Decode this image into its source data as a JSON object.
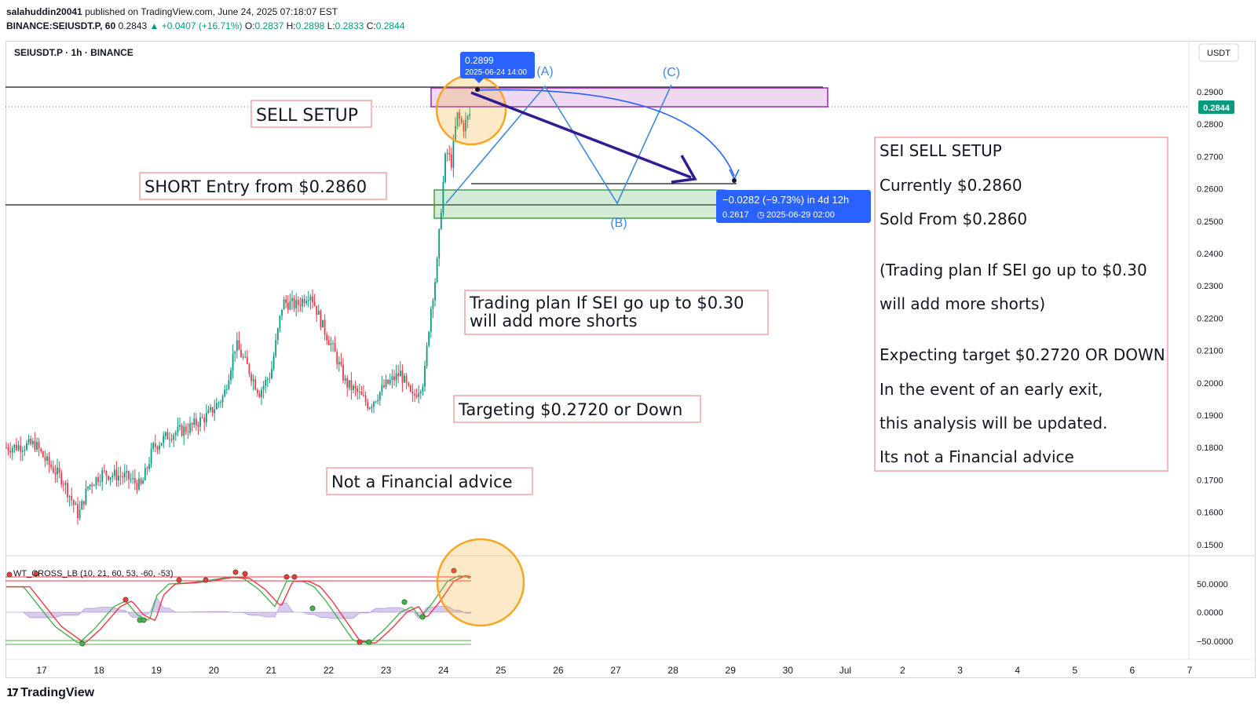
{
  "header": {
    "publisher": "salahuddin20041",
    "published_text": "published on TradingView.com, June 24, 2025 07:18:07 EST",
    "symbol_line": "BINANCE:SEIUSDT.P, 60",
    "last": "0.2843",
    "change": "+0.0407 (+16.71%)",
    "o_label": "O:",
    "o": "0.2837",
    "h_label": "H:",
    "h": "0.2898",
    "l_label": "L:",
    "l": "0.2833",
    "c_label": "C:",
    "c": "0.2844"
  },
  "chart": {
    "title": "SEIUSDT.P · 1h · BINANCE",
    "currency": "USDT",
    "price_axis": [
      "0.2900",
      "0.2800",
      "0.2700",
      "0.2600",
      "0.2500",
      "0.2400",
      "0.2300",
      "0.2200",
      "0.2100",
      "0.2000",
      "0.1900",
      "0.1800",
      "0.1700",
      "0.1600",
      "0.1500"
    ],
    "current_price": "0.2844",
    "time_axis": [
      "17",
      "18",
      "19",
      "20",
      "21",
      "22",
      "23",
      "24",
      "25",
      "26",
      "27",
      "28",
      "29",
      "30",
      "Jul",
      "2",
      "3",
      "4",
      "5",
      "6",
      "7"
    ],
    "indicator_label": "WT_CROSS_LB (10, 21, 60, 53, -60, -53)",
    "indicator_axis": [
      "50.0000",
      "0.0000",
      "−50.0000"
    ],
    "tooltip_high_price": "0.2899",
    "tooltip_high_date": "2025-06-24 14:00",
    "measure_line1": "−0.0282 (−9.73%) in 4d 12h",
    "measure_line2": "0.2617",
    "measure_date": "2025-06-29  02:00",
    "wave_a": "(A)",
    "wave_b": "(B)",
    "wave_c": "(C)",
    "colors": {
      "up": "#089981",
      "down": "#f23645",
      "accent": "#2962ff",
      "arrow": "#311b92",
      "zone_sell": "#ce93d8",
      "zone_buy": "#66bb6a",
      "circle": "#f5a623"
    }
  },
  "annotations": {
    "sell_setup": "SELL SETUP",
    "short_entry": "SHORT Entry from $0.2860",
    "plan_line1": "Trading plan If SEI go up to $0.30",
    "plan_line2": "will add more shorts",
    "targeting": "Targeting $0.2720 or Down",
    "not_advice": "Not a Financial advice"
  },
  "info_box": {
    "lines": [
      "SEI SELL SETUP",
      "Currently $0.2860",
      "Sold From $0.2860",
      "(Trading plan If SEI go up to $0.30",
      "will add more shorts)",
      "Expecting target $0.2720 OR DOWN",
      "In the event of an early exit,",
      "this analysis will be updated.",
      "Its not a Financial advice"
    ]
  },
  "footer": {
    "brand": "TradingView",
    "brand_icon": "tradingview-logo-icon"
  }
}
